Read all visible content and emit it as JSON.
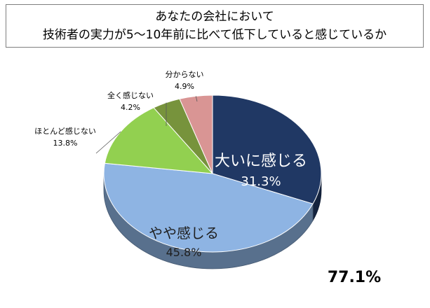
{
  "chart_data": {
    "type": "pie",
    "title": [
      "あなたの会社において",
      "技術者の実力が5〜10年前に比べて低下していると感じているか"
    ],
    "slices": [
      {
        "label": "大いに感じる",
        "value": 31.3,
        "value_text": "31.3%",
        "color": "#203864"
      },
      {
        "label": "やや感じる",
        "value": 45.8,
        "value_text": "45.8%",
        "color": "#8eb4e3"
      },
      {
        "label": "ほとんど感じない",
        "value": 13.8,
        "value_text": "13.8%",
        "color": "#92d050"
      },
      {
        "label": "全く感じない",
        "value": 4.2,
        "value_text": "4.2%",
        "color": "#77933c"
      },
      {
        "label": "分からない",
        "value": 4.9,
        "value_text": "4.9%",
        "color": "#d99594"
      }
    ],
    "annotation": "77.1%"
  }
}
